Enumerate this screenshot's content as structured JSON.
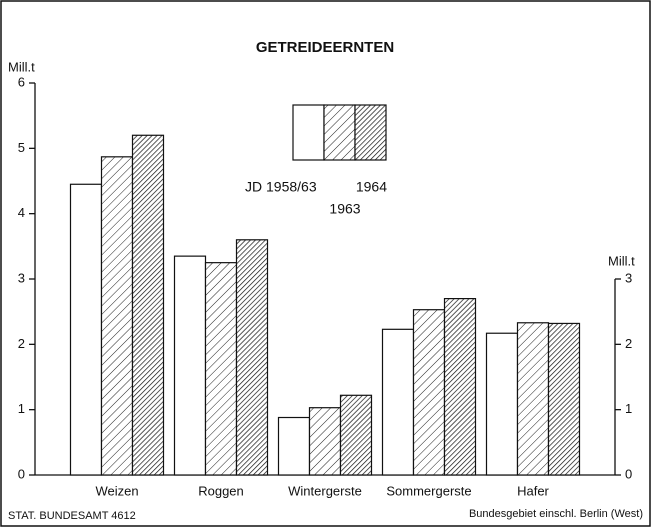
{
  "chart_data": {
    "type": "bar",
    "title": "GETREIDEERNTEN",
    "y_axis_label": "Mill.t",
    "y2_axis_label": "Mill.t",
    "categories": [
      "Weizen",
      "Roggen",
      "Wintergerste",
      "Sommergerste",
      "Hafer"
    ],
    "series": [
      {
        "name": "JD 1958/63",
        "color": "#ffffff",
        "pattern": "none",
        "values": [
          4.45,
          3.35,
          0.88,
          2.23,
          2.17
        ]
      },
      {
        "name": "1963",
        "color": "#ffffff",
        "pattern": "light",
        "values": [
          4.87,
          3.25,
          1.03,
          2.53,
          2.33
        ]
      },
      {
        "name": "1964",
        "color": "#ffffff",
        "pattern": "dense",
        "values": [
          5.2,
          3.6,
          1.22,
          2.7,
          2.32
        ]
      }
    ],
    "ylim": [
      0,
      6
    ],
    "yticks": [
      0,
      1,
      2,
      3,
      4,
      5,
      6
    ],
    "y2lim": [
      0,
      6
    ],
    "y2ticks": [
      0,
      1,
      2,
      3
    ],
    "source": "STAT. BUNDESAMT 4612",
    "footnote": "Bundesgebiet einschl. Berlin (West)"
  }
}
